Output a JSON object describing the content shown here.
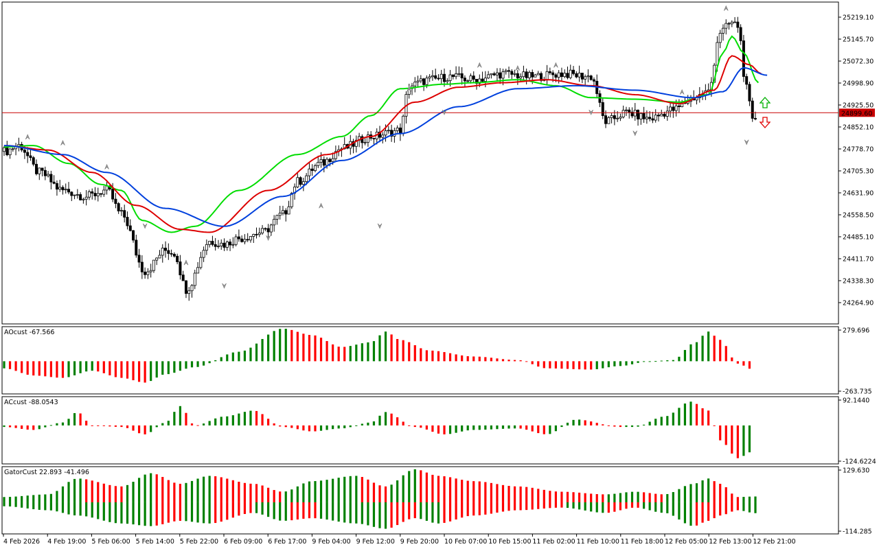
{
  "chart_data": [
    {
      "type": "candlestick",
      "panel": "main",
      "ylim": [
        24230,
        25260
      ],
      "price_ticks": [
        "25219.10",
        "25145.70",
        "25072.30",
        "24998.90",
        "24925.50",
        "24852.10",
        "24778.70",
        "24705.30",
        "24631.90",
        "24558.50",
        "24485.10",
        "24411.70",
        "24338.30",
        "24264.90"
      ],
      "current_price": {
        "label": "24899.60",
        "value": 24899.6,
        "color": "#c80000"
      },
      "candle_colors": {
        "up": "#ffffff",
        "down": "#000000",
        "outline": "#000000"
      },
      "series": [
        {
          "name": "alligator-lips",
          "color": "#00dd00",
          "anchors": [
            [
              0,
              24785
            ],
            [
              10,
              24790
            ],
            [
              22,
              24730
            ],
            [
              33,
              24660
            ],
            [
              40,
              24640
            ],
            [
              47,
              24540
            ],
            [
              57,
              24500
            ],
            [
              65,
              24520
            ],
            [
              80,
              24640
            ],
            [
              100,
              24760
            ],
            [
              115,
              24820
            ],
            [
              125,
              24890
            ],
            [
              135,
              24980
            ],
            [
              150,
              24995
            ],
            [
              160,
              25000
            ],
            [
              175,
              25010
            ],
            [
              188,
              24990
            ],
            [
              200,
              24950
            ],
            [
              215,
              24945
            ],
            [
              230,
              24935
            ],
            [
              240,
              24960
            ],
            [
              245,
              25100
            ],
            [
              248,
              25155
            ],
            [
              252,
              25100
            ],
            [
              257,
              25000
            ]
          ]
        },
        {
          "name": "alligator-teeth",
          "color": "#dd0000",
          "anchors": [
            [
              0,
              24790
            ],
            [
              15,
              24775
            ],
            [
              30,
              24700
            ],
            [
              45,
              24590
            ],
            [
              60,
              24510
            ],
            [
              70,
              24500
            ],
            [
              90,
              24640
            ],
            [
              110,
              24760
            ],
            [
              125,
              24820
            ],
            [
              140,
              24935
            ],
            [
              155,
              24985
            ],
            [
              170,
              25000
            ],
            [
              185,
              25010
            ],
            [
              200,
              24990
            ],
            [
              215,
              24960
            ],
            [
              230,
              24930
            ],
            [
              242,
              24975
            ],
            [
              248,
              25090
            ],
            [
              254,
              25060
            ],
            [
              258,
              25030
            ]
          ]
        },
        {
          "name": "alligator-jaw",
          "color": "#0040dd",
          "anchors": [
            [
              0,
              24790
            ],
            [
              20,
              24760
            ],
            [
              35,
              24700
            ],
            [
              55,
              24580
            ],
            [
              75,
              24520
            ],
            [
              95,
              24620
            ],
            [
              115,
              24740
            ],
            [
              135,
              24830
            ],
            [
              155,
              24920
            ],
            [
              175,
              24980
            ],
            [
              195,
              24990
            ],
            [
              215,
              24975
            ],
            [
              235,
              24950
            ],
            [
              245,
              24970
            ],
            [
              252,
              25050
            ],
            [
              260,
              25025
            ]
          ]
        }
      ]
    },
    {
      "type": "histogram",
      "panel": "ao",
      "title": "AOcust -67.566",
      "ylim": [
        -263.735,
        279.696
      ],
      "ticks": [
        "279.696",
        "-263.735"
      ],
      "anchors": [
        [
          0,
          -60
        ],
        [
          10,
          -120
        ],
        [
          20,
          -140
        ],
        [
          30,
          -80
        ],
        [
          40,
          -140
        ],
        [
          48,
          -180
        ],
        [
          55,
          -110
        ],
        [
          65,
          -50
        ],
        [
          80,
          80
        ],
        [
          95,
          275
        ],
        [
          105,
          220
        ],
        [
          115,
          120
        ],
        [
          125,
          160
        ],
        [
          130,
          250
        ],
        [
          135,
          180
        ],
        [
          145,
          90
        ],
        [
          160,
          40
        ],
        [
          175,
          10
        ],
        [
          185,
          -60
        ],
        [
          200,
          -70
        ],
        [
          210,
          -40
        ],
        [
          220,
          0
        ],
        [
          228,
          10
        ],
        [
          235,
          150
        ],
        [
          240,
          250
        ],
        [
          244,
          180
        ],
        [
          250,
          -20
        ],
        [
          255,
          -68
        ]
      ],
      "colors": {
        "up": "#008000",
        "down": "#ff0000"
      }
    },
    {
      "type": "histogram",
      "panel": "ac",
      "title": "ACcust -88.0543",
      "ylim": [
        -124.6224,
        92.144
      ],
      "ticks": [
        "92.1440",
        "-124.6224"
      ],
      "anchors": [
        [
          0,
          -5
        ],
        [
          10,
          -15
        ],
        [
          20,
          10
        ],
        [
          25,
          45
        ],
        [
          30,
          0
        ],
        [
          40,
          -5
        ],
        [
          48,
          -30
        ],
        [
          55,
          10
        ],
        [
          60,
          65
        ],
        [
          65,
          0
        ],
        [
          75,
          30
        ],
        [
          85,
          50
        ],
        [
          95,
          -5
        ],
        [
          105,
          -20
        ],
        [
          115,
          -10
        ],
        [
          125,
          10
        ],
        [
          130,
          45
        ],
        [
          140,
          -5
        ],
        [
          150,
          -30
        ],
        [
          160,
          -15
        ],
        [
          175,
          -10
        ],
        [
          185,
          -30
        ],
        [
          195,
          20
        ],
        [
          210,
          -5
        ],
        [
          215,
          -5
        ],
        [
          225,
          30
        ],
        [
          234,
          80
        ],
        [
          240,
          50
        ],
        [
          244,
          -50
        ],
        [
          250,
          -110
        ],
        [
          255,
          -88
        ]
      ],
      "colors": {
        "up": "#008000",
        "down": "#ff0000"
      }
    },
    {
      "type": "histogram",
      "panel": "gator",
      "title": "GatorCust 22.893 -41.496",
      "ylim": [
        -114.285,
        129.63
      ],
      "ticks": [
        "129.630",
        "-114.285"
      ],
      "upper_anchors": [
        [
          0,
          20
        ],
        [
          15,
          30
        ],
        [
          25,
          90
        ],
        [
          40,
          60
        ],
        [
          50,
          110
        ],
        [
          60,
          70
        ],
        [
          70,
          100
        ],
        [
          85,
          70
        ],
        [
          95,
          40
        ],
        [
          105,
          80
        ],
        [
          120,
          100
        ],
        [
          130,
          60
        ],
        [
          140,
          125
        ],
        [
          148,
          100
        ],
        [
          160,
          80
        ],
        [
          175,
          60
        ],
        [
          190,
          40
        ],
        [
          205,
          30
        ],
        [
          215,
          40
        ],
        [
          225,
          30
        ],
        [
          235,
          70
        ],
        [
          240,
          90
        ],
        [
          244,
          70
        ],
        [
          250,
          20
        ],
        [
          256,
          22
        ]
      ],
      "lower_anchors": [
        [
          0,
          -15
        ],
        [
          15,
          -30
        ],
        [
          25,
          -50
        ],
        [
          40,
          -80
        ],
        [
          50,
          -90
        ],
        [
          60,
          -70
        ],
        [
          70,
          -80
        ],
        [
          85,
          -40
        ],
        [
          95,
          -70
        ],
        [
          105,
          -60
        ],
        [
          120,
          -80
        ],
        [
          130,
          -100
        ],
        [
          140,
          -60
        ],
        [
          148,
          -80
        ],
        [
          160,
          -50
        ],
        [
          175,
          -30
        ],
        [
          190,
          -20
        ],
        [
          205,
          -40
        ],
        [
          215,
          -20
        ],
        [
          225,
          -40
        ],
        [
          235,
          -90
        ],
        [
          240,
          -70
        ],
        [
          244,
          -50
        ],
        [
          250,
          -30
        ],
        [
          256,
          -41
        ]
      ],
      "colors": {
        "up": "#008000",
        "down": "#ff0000"
      }
    }
  ],
  "time_labels": [
    "4 Feb 2026",
    "4 Feb 19:00",
    "5 Feb 06:00",
    "5 Feb 14:00",
    "5 Feb 22:00",
    "6 Feb 09:00",
    "6 Feb 17:00",
    "9 Feb 04:00",
    "9 Feb 12:00",
    "9 Feb 20:00",
    "10 Feb 07:00",
    "10 Feb 15:00",
    "11 Feb 02:00",
    "11 Feb 10:00",
    "11 Feb 18:00",
    "12 Feb 05:00",
    "12 Feb 13:00",
    "12 Feb 21:00"
  ],
  "signals": {
    "up_arrow_color": "#00b000",
    "down_arrow_color": "#e00000"
  }
}
